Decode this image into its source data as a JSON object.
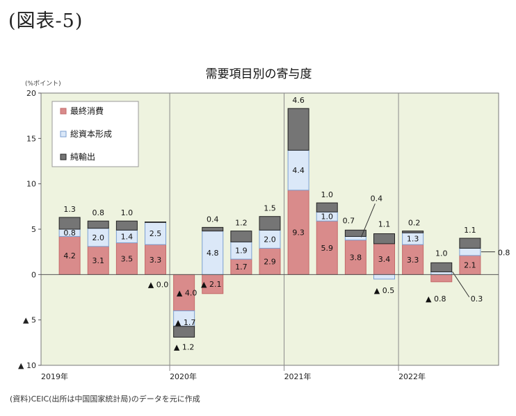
{
  "figure_label": "(図表-5)",
  "source_note": "(資料)CEIC(出所は中国国家統計局)のデータを元に作成",
  "chart_data": {
    "type": "bar",
    "stacked": true,
    "title": "需要項目別の寄与度",
    "ylabel": "(%ポイント)",
    "ylim": [
      -10,
      20
    ],
    "yticks": [
      {
        "v": 20,
        "label": "20"
      },
      {
        "v": 15,
        "label": "15"
      },
      {
        "v": 10,
        "label": "10"
      },
      {
        "v": 5,
        "label": "5"
      },
      {
        "v": 0,
        "label": "0"
      },
      {
        "v": -5,
        "label": "▲ 5"
      },
      {
        "v": -10,
        "label": "▲ 10"
      }
    ],
    "year_labels": [
      "2019年",
      "2020年",
      "2021年",
      "2022年"
    ],
    "legend_position": "top-left",
    "colors": {
      "consumption": "#d98b8b",
      "capital": "#dbe8f8",
      "net_exports": "#757575",
      "plot_bg": "#eef3df",
      "line": "#7b9fd1"
    },
    "series": [
      {
        "key": "consumption",
        "name": "最終消費",
        "values": [
          4.2,
          3.1,
          3.5,
          3.3,
          -4.0,
          -2.1,
          1.7,
          2.9,
          9.3,
          5.9,
          3.8,
          3.4,
          3.3,
          -0.8,
          2.1
        ],
        "labels": [
          "4.2",
          "3.1",
          "3.5",
          "3.3",
          "▲ 4.0",
          "▲ 2.1",
          "1.7",
          "2.9",
          "9.3",
          "5.9",
          "3.8",
          "3.4",
          "3.3",
          "▲ 0.8",
          "2.1"
        ]
      },
      {
        "key": "capital",
        "name": "総資本形成",
        "values": [
          0.8,
          2.0,
          1.4,
          2.5,
          -1.7,
          4.8,
          1.9,
          2.0,
          4.4,
          1.0,
          0.4,
          -0.5,
          1.3,
          0.3,
          0.8
        ],
        "labels": [
          "0.8",
          "2.0",
          "1.4",
          "2.5",
          "▲ 1.7",
          "4.8",
          "1.9",
          "2.0",
          "4.4",
          "1.0",
          "0.4",
          "▲ 0.5",
          "1.3",
          "0.3",
          "0.8"
        ]
      },
      {
        "key": "net_exports",
        "name": "純輸出",
        "values": [
          1.3,
          0.8,
          1.0,
          0.0,
          -1.2,
          0.4,
          1.2,
          1.5,
          4.6,
          1.0,
          0.7,
          1.1,
          0.2,
          1.0,
          1.1
        ],
        "labels": [
          "1.3",
          "0.8",
          "1.0",
          "▲ 0.0",
          "▲ 1.2",
          "0.4",
          "1.2",
          "1.5",
          "4.6",
          "1.0",
          "0.7",
          "1.1",
          "0.2",
          "1.0",
          "1.1"
        ]
      }
    ]
  }
}
